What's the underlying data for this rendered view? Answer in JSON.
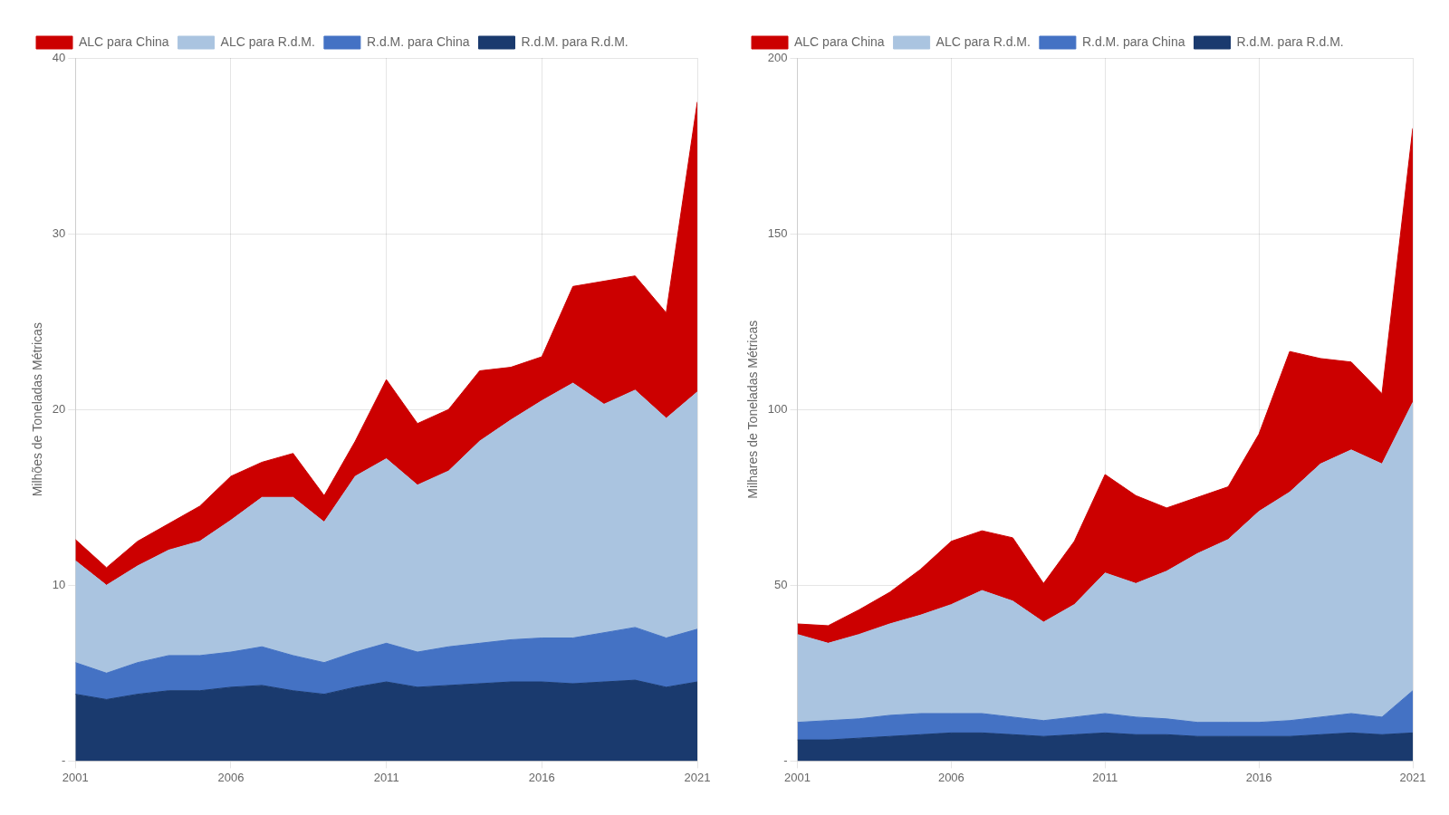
{
  "chart_data": [
    {
      "type": "area",
      "stacked": true,
      "ylabel": "Milhões de Toneladas Métricas",
      "x": [
        2001,
        2002,
        2003,
        2004,
        2005,
        2006,
        2007,
        2008,
        2009,
        2010,
        2011,
        2012,
        2013,
        2014,
        2015,
        2016,
        2017,
        2018,
        2019,
        2020,
        2021
      ],
      "series": [
        {
          "name": "R.d.M. para R.d.M.",
          "color": "#1a3a6e",
          "values": [
            3.8,
            3.5,
            3.8,
            4.0,
            4.0,
            4.2,
            4.3,
            4.0,
            3.8,
            4.2,
            4.5,
            4.2,
            4.3,
            4.4,
            4.5,
            4.5,
            4.4,
            4.5,
            4.6,
            4.2,
            4.5
          ]
        },
        {
          "name": "R.d.M. para China",
          "color": "#4472c4",
          "values": [
            1.8,
            1.5,
            1.8,
            2.0,
            2.0,
            2.0,
            2.2,
            2.0,
            1.8,
            2.0,
            2.2,
            2.0,
            2.2,
            2.3,
            2.4,
            2.5,
            2.6,
            2.8,
            3.0,
            2.8,
            3.0
          ]
        },
        {
          "name": "ALC para R.d.M.",
          "color": "#aac4e0",
          "values": [
            5.8,
            5.0,
            5.5,
            6.0,
            6.5,
            7.5,
            8.5,
            9.0,
            8.0,
            10.0,
            10.5,
            9.5,
            10.0,
            11.5,
            12.5,
            13.5,
            14.5,
            13.0,
            13.5,
            12.5,
            13.5
          ]
        },
        {
          "name": "ALC para China",
          "color": "#cc0000",
          "values": [
            1.2,
            1.0,
            1.4,
            1.5,
            2.0,
            2.5,
            2.0,
            2.5,
            1.5,
            2.0,
            4.5,
            3.5,
            3.5,
            4.0,
            3.0,
            2.5,
            5.5,
            7.0,
            6.5,
            6.0,
            16.5
          ]
        }
      ],
      "xlim": [
        2001,
        2021
      ],
      "xticks": [
        2001,
        2006,
        2011,
        2016,
        2021
      ],
      "ylim": [
        0,
        40
      ],
      "yticks": [
        {
          "value": 0,
          "label": "-"
        },
        10,
        20,
        30,
        40
      ],
      "grid": true,
      "legend": "upper left"
    },
    {
      "type": "area",
      "stacked": true,
      "ylabel": "Milhares de Toneladas Métricas",
      "x": [
        2001,
        2002,
        2003,
        2004,
        2005,
        2006,
        2007,
        2008,
        2009,
        2010,
        2011,
        2012,
        2013,
        2014,
        2015,
        2016,
        2017,
        2018,
        2019,
        2020,
        2021
      ],
      "series": [
        {
          "name": "R.d.M. para R.d.M.",
          "color": "#1a3a6e",
          "values": [
            6.0,
            6.0,
            6.5,
            7.0,
            7.5,
            8.0,
            8.0,
            7.5,
            7.0,
            7.5,
            8.0,
            7.5,
            7.5,
            7.0,
            7.0,
            7.0,
            7.0,
            7.5,
            8.0,
            7.5,
            8.0
          ]
        },
        {
          "name": "R.d.M. para China",
          "color": "#4472c4",
          "values": [
            5.0,
            5.5,
            5.5,
            6.0,
            6.0,
            5.5,
            5.5,
            5.0,
            4.5,
            5.0,
            5.5,
            5.0,
            4.5,
            4.0,
            4.0,
            4.0,
            4.5,
            5.0,
            5.5,
            5.0,
            12.0
          ]
        },
        {
          "name": "ALC para R.d.M.",
          "color": "#aac4e0",
          "values": [
            25.0,
            22.0,
            24.0,
            26.0,
            28.0,
            31.0,
            35.0,
            33.0,
            28.0,
            32.0,
            40.0,
            38.0,
            42.0,
            48.0,
            52.0,
            60.0,
            65.0,
            72.0,
            75.0,
            72.0,
            82.0
          ]
        },
        {
          "name": "ALC para China",
          "color": "#cc0000",
          "values": [
            3.0,
            5.0,
            7.0,
            9.0,
            13.0,
            18.0,
            17.0,
            18.0,
            11.0,
            18.0,
            28.0,
            25.0,
            18.0,
            16.0,
            15.0,
            22.0,
            40.0,
            30.0,
            25.0,
            20.0,
            78.0
          ]
        }
      ],
      "xlim": [
        2001,
        2021
      ],
      "xticks": [
        2001,
        2006,
        2011,
        2016,
        2021
      ],
      "ylim": [
        0,
        200
      ],
      "yticks": [
        {
          "value": 0,
          "label": "-"
        },
        50,
        100,
        150,
        200
      ],
      "grid": true,
      "legend": "upper left"
    }
  ]
}
